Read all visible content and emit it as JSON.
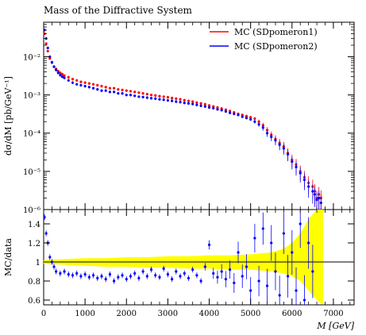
{
  "chart_data": {
    "type": "scatter",
    "title": "Mass of the Diffractive System",
    "legend": {
      "placement": "top-right",
      "entries": [
        {
          "name": "MC (SDpomeron1)",
          "color": "#ff0000"
        },
        {
          "name": "MC (SDpomeron2)",
          "color": "#0000ff"
        }
      ]
    },
    "main_panel": {
      "ylabel": "dσ/dM [pb/GeV⁻¹]",
      "yscale": "log",
      "ylim": [
        1e-06,
        0.08
      ],
      "yticks": [
        {
          "value": 1e-06,
          "label": "10⁻⁶"
        },
        {
          "value": 1e-05,
          "label": "10⁻⁵"
        },
        {
          "value": 0.0001,
          "label": "10⁻⁴"
        },
        {
          "value": 0.001,
          "label": "10⁻³"
        },
        {
          "value": 0.01,
          "label": "10⁻²"
        }
      ],
      "series": [
        {
          "name": "MC (SDpomeron1)",
          "color": "#ff0000",
          "x": [
            20,
            60,
            100,
            150,
            200,
            250,
            300,
            350,
            400,
            450,
            500,
            600,
            700,
            800,
            900,
            1000,
            1100,
            1200,
            1300,
            1400,
            1500,
            1600,
            1700,
            1800,
            1900,
            2000,
            2100,
            2200,
            2300,
            2400,
            2500,
            2600,
            2700,
            2800,
            2900,
            3000,
            3100,
            3200,
            3300,
            3400,
            3500,
            3600,
            3700,
            3800,
            3900,
            4000,
            4100,
            4200,
            4300,
            4400,
            4500,
            4600,
            4700,
            4800,
            4900,
            5000,
            5100,
            5200,
            5300,
            5400,
            5500,
            5600,
            5700,
            5800,
            5900,
            6000,
            6100,
            6200,
            6300,
            6400,
            6500,
            6550,
            6600,
            6650,
            6700
          ],
          "y": [
            0.04,
            0.022,
            0.014,
            0.009,
            0.007,
            0.0055,
            0.0048,
            0.0042,
            0.0038,
            0.0035,
            0.0032,
            0.0029,
            0.0026,
            0.0024,
            0.0022,
            0.0021,
            0.002,
            0.0019,
            0.0018,
            0.0017,
            0.0016,
            0.0015,
            0.0015,
            0.0014,
            0.00135,
            0.0013,
            0.00125,
            0.0012,
            0.00115,
            0.0011,
            0.00105,
            0.001,
            0.00097,
            0.00093,
            0.0009,
            0.00087,
            0.00083,
            0.0008,
            0.00077,
            0.00073,
            0.0007,
            0.00067,
            0.00063,
            0.0006,
            0.00057,
            0.00053,
            0.0005,
            0.00047,
            0.00044,
            0.00041,
            0.00038,
            0.00035,
            0.00032,
            0.0003,
            0.00028,
            0.00026,
            0.00024,
            0.0002,
            0.00016,
            0.00012,
            9e-05,
            7e-05,
            5.5e-05,
            4.5e-05,
            3e-05,
            2e-05,
            1.5e-05,
            1e-05,
            7e-06,
            5e-06,
            4e-06,
            3e-06,
            2e-06,
            2.5e-06,
            2e-06
          ]
        },
        {
          "name": "MC (SDpomeron2)",
          "color": "#0000ff",
          "x": [
            20,
            60,
            100,
            150,
            200,
            250,
            300,
            350,
            400,
            450,
            500,
            600,
            700,
            800,
            900,
            1000,
            1100,
            1200,
            1300,
            1400,
            1500,
            1600,
            1700,
            1800,
            1900,
            2000,
            2100,
            2200,
            2300,
            2400,
            2500,
            2600,
            2700,
            2800,
            2900,
            3000,
            3100,
            3200,
            3300,
            3400,
            3500,
            3600,
            3700,
            3800,
            3900,
            4000,
            4100,
            4200,
            4300,
            4400,
            4500,
            4600,
            4700,
            4800,
            4900,
            5000,
            5100,
            5200,
            5300,
            5400,
            5500,
            5600,
            5700,
            5800,
            5900,
            6000,
            6100,
            6200,
            6300,
            6400,
            6500,
            6550,
            6600,
            6650,
            6700
          ],
          "y": [
            0.05,
            0.03,
            0.017,
            0.01,
            0.0072,
            0.0055,
            0.0045,
            0.0038,
            0.0033,
            0.003,
            0.0028,
            0.0024,
            0.0021,
            0.0019,
            0.0018,
            0.0017,
            0.0016,
            0.0015,
            0.0014,
            0.0013,
            0.0013,
            0.0012,
            0.0012,
            0.0011,
            0.0011,
            0.001,
            0.001,
            0.00095,
            0.0009,
            0.00088,
            0.00085,
            0.00082,
            0.0008,
            0.00077,
            0.00075,
            0.00072,
            0.0007,
            0.00067,
            0.00065,
            0.00062,
            0.0006,
            0.00058,
            0.00055,
            0.00052,
            0.0005,
            0.00047,
            0.00045,
            0.00042,
            0.0004,
            0.00037,
            0.00034,
            0.00032,
            0.0003,
            0.00027,
            0.00025,
            0.00023,
            0.0002,
            0.00017,
            0.00014,
            0.0001,
            8e-05,
            6.5e-05,
            5e-05,
            4e-05,
            2.8e-05,
            1.8e-05,
            1.3e-05,
            9e-06,
            6e-06,
            4e-06,
            3e-06,
            2.5e-06,
            1.8e-06,
            2e-06,
            1.5e-06
          ]
        }
      ]
    },
    "ratio_panel": {
      "ylabel": "MC/data",
      "ylim": [
        0.55,
        1.55
      ],
      "yticks": [
        {
          "value": 0.6,
          "label": "0.6"
        },
        {
          "value": 0.8,
          "label": "0.8"
        },
        {
          "value": 1.0,
          "label": "1"
        },
        {
          "value": 1.2,
          "label": "1.2"
        },
        {
          "value": 1.4,
          "label": "1.4"
        }
      ],
      "band_color": "#ffff00",
      "band": {
        "x": [
          0,
          500,
          1000,
          1500,
          2000,
          2500,
          3000,
          3500,
          4000,
          4500,
          5000,
          5500,
          5800,
          6000,
          6200,
          6400,
          6600,
          6750
        ],
        "low": [
          0.98,
          0.97,
          0.96,
          0.95,
          0.95,
          0.94,
          0.94,
          0.93,
          0.93,
          0.92,
          0.92,
          0.9,
          0.88,
          0.85,
          0.8,
          0.7,
          0.6,
          0.55
        ],
        "high": [
          1.02,
          1.03,
          1.04,
          1.04,
          1.05,
          1.05,
          1.06,
          1.06,
          1.07,
          1.07,
          1.08,
          1.1,
          1.14,
          1.2,
          1.3,
          1.45,
          1.55,
          1.55
        ]
      },
      "series": [
        {
          "name": "MC (SDpomeron2)",
          "color": "#0000ff",
          "x": [
            20,
            60,
            100,
            150,
            200,
            250,
            300,
            400,
            500,
            600,
            700,
            800,
            900,
            1000,
            1100,
            1200,
            1300,
            1400,
            1500,
            1600,
            1700,
            1800,
            1900,
            2000,
            2100,
            2200,
            2300,
            2400,
            2500,
            2600,
            2700,
            2800,
            2900,
            3000,
            3100,
            3200,
            3300,
            3400,
            3500,
            3600,
            3700,
            3800,
            3900,
            4000,
            4100,
            4200,
            4300,
            4400,
            4500,
            4600,
            4700,
            4800,
            4900,
            5000,
            5100,
            5200,
            5300,
            5400,
            5500,
            5600,
            5700,
            5800,
            5900,
            6000,
            6100,
            6200,
            6300,
            6400,
            6500
          ],
          "y": [
            1.47,
            1.3,
            1.2,
            1.05,
            1.0,
            0.95,
            0.9,
            0.88,
            0.9,
            0.87,
            0.86,
            0.88,
            0.85,
            0.87,
            0.84,
            0.86,
            0.83,
            0.85,
            0.82,
            0.87,
            0.8,
            0.84,
            0.86,
            0.82,
            0.85,
            0.88,
            0.83,
            0.9,
            0.85,
            0.92,
            0.86,
            0.84,
            0.93,
            0.87,
            0.82,
            0.9,
            0.85,
            0.88,
            0.83,
            0.92,
            0.86,
            0.8,
            0.95,
            1.18,
            0.88,
            0.84,
            0.9,
            0.82,
            0.92,
            0.78,
            1.1,
            0.85,
            0.95,
            0.7,
            1.25,
            0.8,
            1.35,
            0.75,
            1.2,
            0.9,
            0.65,
            1.3,
            0.85,
            1.1,
            0.7,
            1.4,
            0.6,
            1.2,
            0.9
          ]
        }
      ]
    },
    "xaxis": {
      "label": "M [GeV]",
      "xlim": [
        0,
        7500
      ],
      "ticks": [
        {
          "value": 0,
          "label": "0"
        },
        {
          "value": 1000,
          "label": "1000"
        },
        {
          "value": 2000,
          "label": "2000"
        },
        {
          "value": 3000,
          "label": "3000"
        },
        {
          "value": 4000,
          "label": "4000"
        },
        {
          "value": 5000,
          "label": "5000"
        },
        {
          "value": 6000,
          "label": "6000"
        },
        {
          "value": 7000,
          "label": "7000"
        }
      ]
    }
  }
}
